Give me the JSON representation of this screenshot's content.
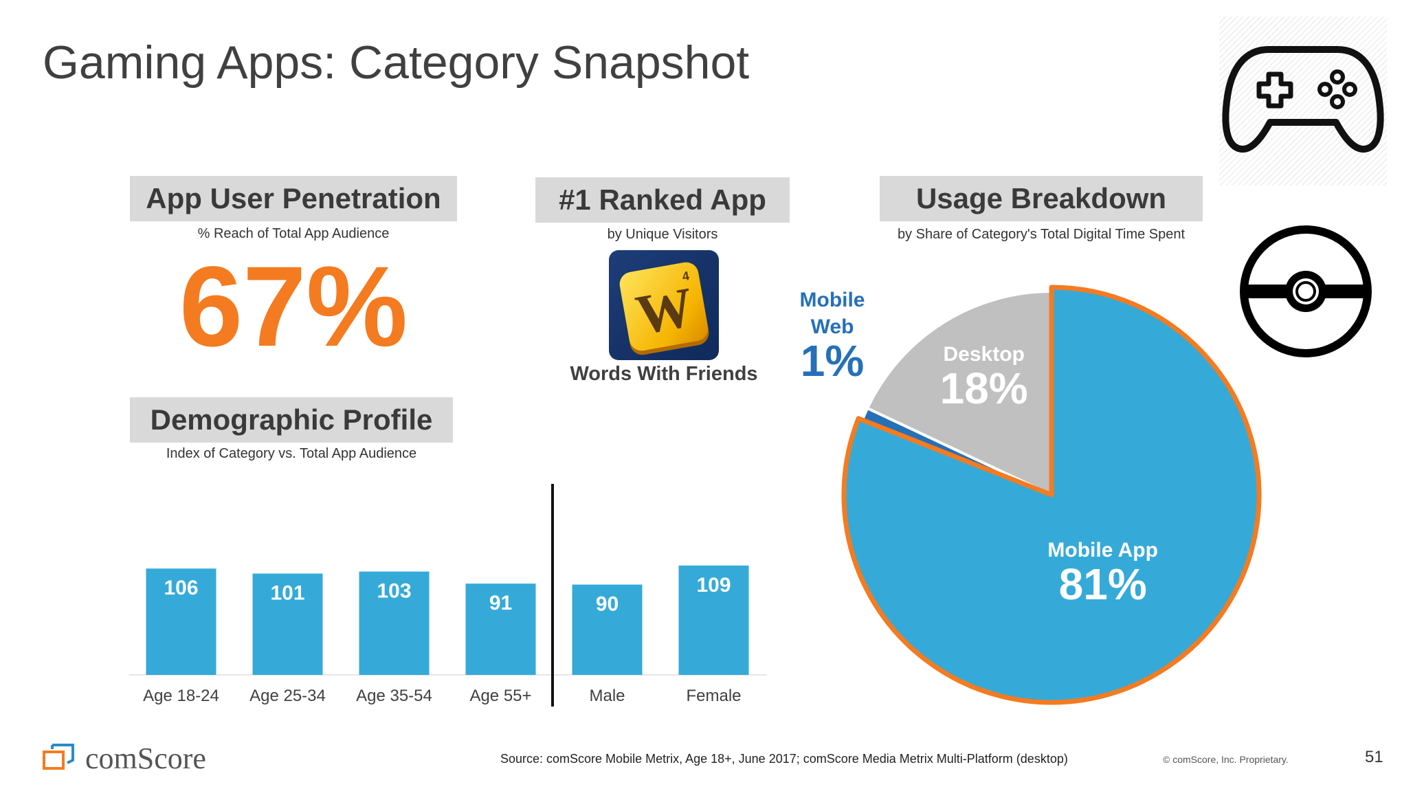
{
  "title": "Gaming Apps: Category Snapshot",
  "penetration": {
    "header": "App User Penetration",
    "subtitle": "% Reach of Total App Audience",
    "value": "67%"
  },
  "ranked": {
    "header": "#1 Ranked App",
    "subtitle": "by Unique Visitors",
    "app_name": "Words With Friends",
    "icon_letter": "W",
    "icon_number": "4"
  },
  "usage": {
    "header": "Usage Breakdown",
    "subtitle": "by Share of Category's Total Digital Time Spent"
  },
  "demographic": {
    "header": "Demographic Profile",
    "subtitle": "Index of Category vs. Total App Audience"
  },
  "chart_data": [
    {
      "type": "bar",
      "categories": [
        "Age 18-24",
        "Age 25-34",
        "Age 35-54",
        "Age 55+",
        "Male",
        "Female"
      ],
      "values": [
        106,
        101,
        103,
        91,
        90,
        109
      ],
      "value_labels": [
        "106",
        "101",
        "103",
        "91",
        "90",
        "109"
      ],
      "color": "#35aad8",
      "divider_after_index": 3
    },
    {
      "type": "pie",
      "slices": [
        {
          "label_lines": [
            "Mobile App"
          ],
          "percent_label": "81%",
          "value": 81,
          "color": "#35aad8",
          "text_color": "#ffffff"
        },
        {
          "label_lines": [
            "Mobile",
            "Web"
          ],
          "percent_label": "1%",
          "value": 1,
          "color": "#2670b8",
          "text_color": "#2670b8"
        },
        {
          "label_lines": [
            "Desktop"
          ],
          "percent_label": "18%",
          "value": 18,
          "color": "#c0c0c0",
          "text_color": "#ffffff"
        }
      ],
      "outline_color": "#f47b20"
    }
  ],
  "icons": [
    "game-controller-icon",
    "pokeball-icon"
  ],
  "footer": {
    "brand": "comScore",
    "source": "Source: comScore Mobile Metrix, Age 18+, June 2017; comScore Media Metrix Multi-Platform (desktop)",
    "copyright": "© comScore, Inc. Proprietary.",
    "page_number": "51"
  },
  "colors": {
    "accent": "#f47b20",
    "bar": "#35aad8",
    "header_bg": "#d9d9d9"
  }
}
